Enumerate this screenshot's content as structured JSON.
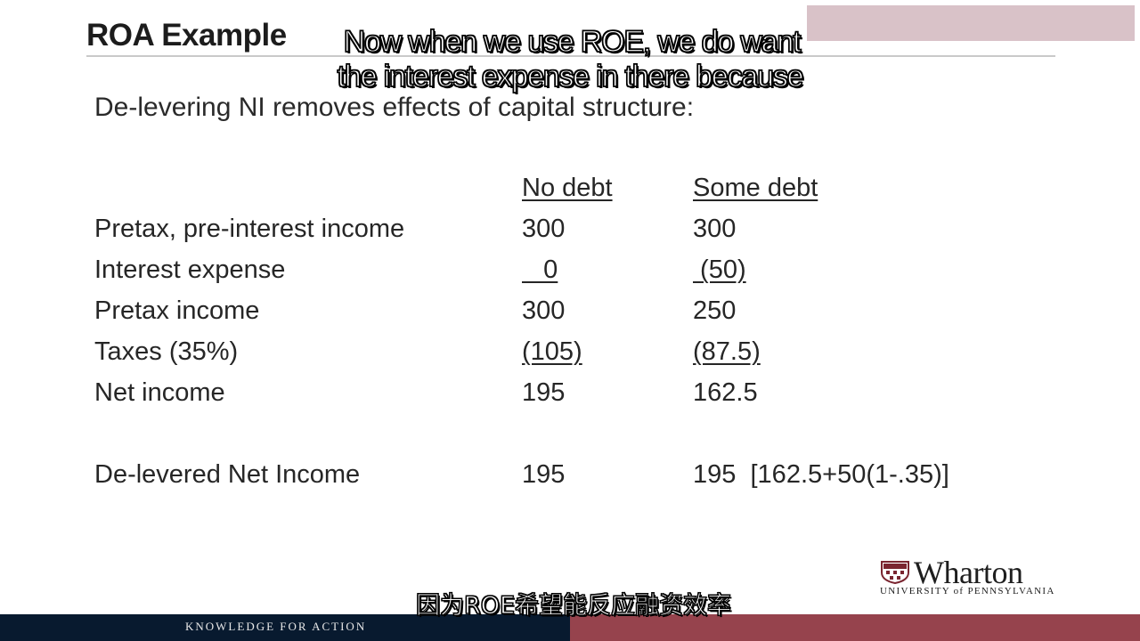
{
  "slide": {
    "title": "ROA Example",
    "lead": "De-levering NI removes effects of capital structure:"
  },
  "table": {
    "columns": [
      "No debt",
      "Some debt"
    ],
    "rows": [
      {
        "label": "Pretax, pre-interest income",
        "a": "300",
        "b": "300"
      },
      {
        "label": "Interest expense",
        "a": "   0",
        "b": " (50)"
      },
      {
        "label": "Pretax income",
        "a": "300",
        "b": "250"
      },
      {
        "label": "Taxes (35%)",
        "a": "(105)",
        "b": "(87.5)"
      },
      {
        "label": "Net income",
        "a": "195",
        "b": "162.5"
      },
      {
        "label": "De-levered Net Income",
        "a": "195",
        "b": "195  [162.5+50(1-.35)]"
      }
    ]
  },
  "subtitles": {
    "en_line1": "Now when we use ROE, we do want",
    "en_line2": "the interest expense in there because",
    "cn": "因为ROE希望能反应融资效率"
  },
  "logo": {
    "word": "Wharton",
    "university": "UNIVERSITY of PENNSYLVANIA"
  },
  "footer": {
    "tagline": "KNOWLEDGE FOR ACTION"
  },
  "colors": {
    "footer_navy": "#081a2f",
    "footer_maroon": "#96434d",
    "watermark": "#d9c2c8"
  }
}
